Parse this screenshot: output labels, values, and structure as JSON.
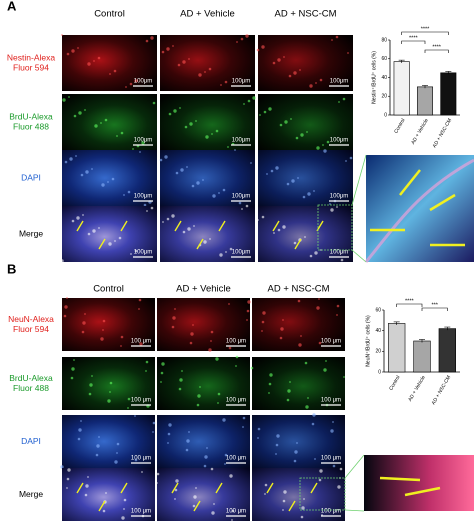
{
  "figure": {
    "panels": [
      {
        "label": "A",
        "columns": [
          "Control",
          "AD + Vehicle",
          "AD + NSC-CM"
        ],
        "rows": [
          {
            "lines": [
              "Nestin-Alexa",
              "Fluor 594"
            ],
            "color": "#e0201c"
          },
          {
            "lines": [
              "BrdU-Alexa",
              "Fluor 488"
            ],
            "color": "#1a9a2a"
          },
          {
            "lines": [
              "DAPI"
            ],
            "color": "#1f5fd0"
          },
          {
            "lines": [
              "Merge"
            ],
            "color": "#000000"
          }
        ],
        "scale_bar": "100μm"
      },
      {
        "label": "B",
        "columns": [
          "Control",
          "AD + Vehicle",
          "AD + NSC-CM"
        ],
        "rows": [
          {
            "lines": [
              "NeuN-Alexa",
              "Fluor 594"
            ],
            "color": "#e0201c"
          },
          {
            "lines": [
              "BrdU-Alexa",
              "Fluor 488"
            ],
            "color": "#1a9a2a"
          },
          {
            "lines": [
              "DAPI"
            ],
            "color": "#1f5fd0"
          },
          {
            "lines": [
              "Merge"
            ],
            "color": "#000000"
          }
        ],
        "scale_bar": "100 μm"
      }
    ]
  },
  "chart_data": [
    {
      "type": "bar",
      "ylabel": "Nestin⁺/BrdU⁺ cells (%)",
      "categories": [
        "Control",
        "AD + Vehicle",
        "AD + NSC-CM"
      ],
      "values": [
        57,
        30,
        45
      ],
      "errors": [
        1.5,
        1.5,
        1.5
      ],
      "colors": [
        "#f2f2f2",
        "#a6a6a6",
        "#111111"
      ],
      "ylim": [
        0,
        80
      ],
      "yticks": [
        0,
        20,
        40,
        60,
        80
      ],
      "annotations": [
        "****",
        "****",
        "****"
      ]
    },
    {
      "type": "bar",
      "ylabel": "NeuN⁺/BrdU⁺ cells (%)",
      "categories": [
        "Control",
        "AD + Vehicle",
        "AD + NSC-CM"
      ],
      "values": [
        47,
        30,
        42
      ],
      "errors": [
        1.5,
        1.5,
        1.5
      ],
      "colors": [
        "#d0d0d0",
        "#a6a6a6",
        "#333333"
      ],
      "ylim": [
        0,
        60
      ],
      "yticks": [
        0,
        20,
        40,
        60
      ],
      "annotations": [
        "****",
        "***"
      ]
    }
  ]
}
